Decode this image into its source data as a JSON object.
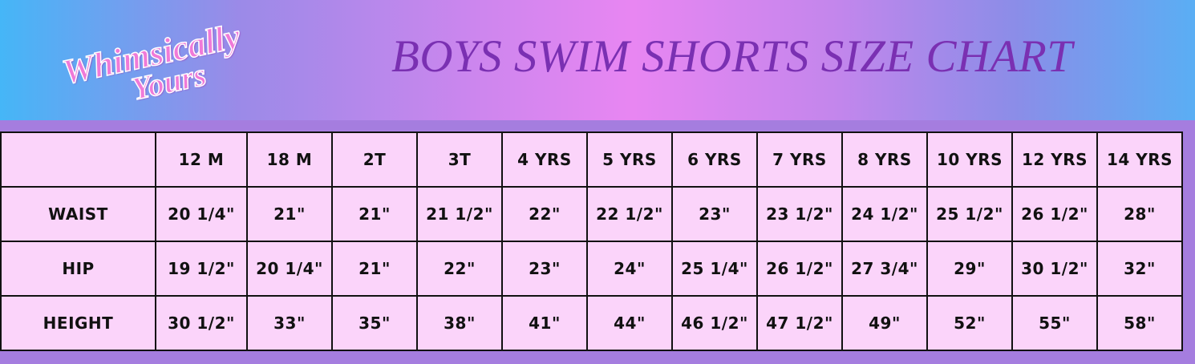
{
  "header": {
    "logo": [
      "Whimsically",
      "Yours"
    ],
    "title": "BOYS SWIM SHORTS SIZE CHART"
  },
  "table": {
    "columns": [
      "12 M",
      "18 M",
      "2T",
      "3T",
      "4 YRS",
      "5 YRS",
      "6 YRS",
      "7 YRS",
      "8 YRS",
      "10 YRS",
      "12 YRS",
      "14 YRS"
    ],
    "rows": [
      {
        "label": "WAIST",
        "values": [
          "20 1/4\"",
          "21\"",
          "21\"",
          "21 1/2\"",
          "22\"",
          "22 1/2\"",
          "23\"",
          "23 1/2\"",
          "24 1/2\"",
          "25 1/2\"",
          "26 1/2\"",
          "28\""
        ]
      },
      {
        "label": "HIP",
        "values": [
          "19 1/2\"",
          "20 1/4\"",
          "21\"",
          "22\"",
          "23\"",
          "24\"",
          "25 1/4\"",
          "26 1/2\"",
          "27 3/4\"",
          "29\"",
          "30 1/2\"",
          "32\""
        ]
      },
      {
        "label": "HEIGHT",
        "values": [
          "30 1/2\"",
          "33\"",
          "35\"",
          "38\"",
          "41\"",
          "44\"",
          "46 1/2\"",
          "47 1/2\"",
          "49\"",
          "52\"",
          "55\"",
          "58\""
        ]
      }
    ]
  }
}
